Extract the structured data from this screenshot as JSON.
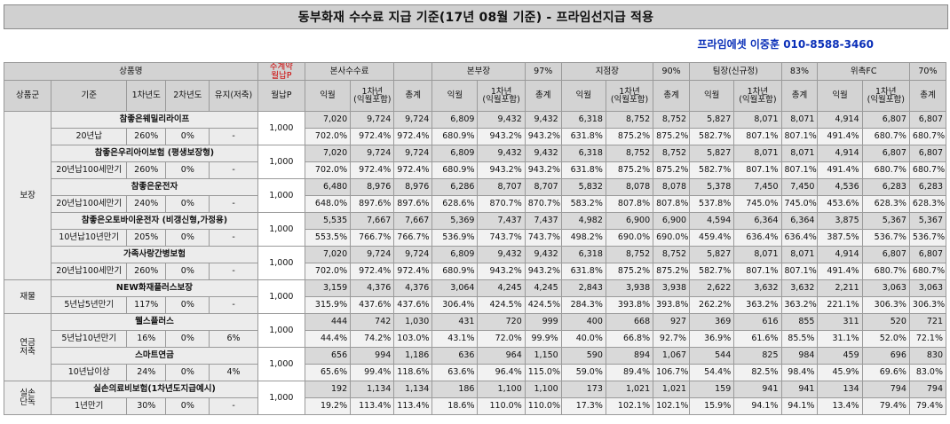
{
  "title": "동부화재 수수료 지급 기준(17년 08월 기준) - 프라임선지급 적용",
  "contact": "프라임에셋 이중훈 010-8588-3460",
  "header": {
    "product": "상품명",
    "monthly_red": "주계약\n월납P",
    "channels": [
      {
        "name": "본사수수료",
        "rate": ""
      },
      {
        "name": "본부장",
        "rate": "97%"
      },
      {
        "name": "지점장",
        "rate": "90%"
      },
      {
        "name": "팀장(신규정)",
        "rate": "83%"
      },
      {
        "name": "위촉FC",
        "rate": "70%"
      }
    ],
    "sub": {
      "group": "상품군",
      "basis": "기준",
      "y1": "1차년도",
      "y2": "2차년도",
      "keep": "유지(저축)",
      "monthly": "월납P",
      "c1": "익월",
      "c2": "1차년\n(익월포함)",
      "c3": "총계"
    }
  },
  "groups": [
    {
      "name": "보장",
      "products": [
        {
          "name": "참좋은웨밀리라이프",
          "basis": "20년납",
          "y1": "260%",
          "y2": "0%",
          "keep": "-",
          "pay": "1,000",
          "amounts": [
            [
              "7,020",
              "9,724",
              "9,724"
            ],
            [
              "6,809",
              "9,432",
              "9,432"
            ],
            [
              "6,318",
              "8,752",
              "8,752"
            ],
            [
              "5,827",
              "8,071",
              "8,071"
            ],
            [
              "4,914",
              "6,807",
              "6,807"
            ]
          ],
          "pcts": [
            [
              "702.0%",
              "972.4%",
              "972.4%"
            ],
            [
              "680.9%",
              "943.2%",
              "943.2%"
            ],
            [
              "631.8%",
              "875.2%",
              "875.2%"
            ],
            [
              "582.7%",
              "807.1%",
              "807.1%"
            ],
            [
              "491.4%",
              "680.7%",
              "680.7%"
            ]
          ]
        },
        {
          "name": "참좋은우리아이보험 (평생보장형)",
          "basis": "20년납100세만기",
          "y1": "260%",
          "y2": "0%",
          "keep": "-",
          "pay": "1,000",
          "amounts": [
            [
              "7,020",
              "9,724",
              "9,724"
            ],
            [
              "6,809",
              "9,432",
              "9,432"
            ],
            [
              "6,318",
              "8,752",
              "8,752"
            ],
            [
              "5,827",
              "8,071",
              "8,071"
            ],
            [
              "4,914",
              "6,807",
              "6,807"
            ]
          ],
          "pcts": [
            [
              "702.0%",
              "972.4%",
              "972.4%"
            ],
            [
              "680.9%",
              "943.2%",
              "943.2%"
            ],
            [
              "631.8%",
              "875.2%",
              "875.2%"
            ],
            [
              "582.7%",
              "807.1%",
              "807.1%"
            ],
            [
              "491.4%",
              "680.7%",
              "680.7%"
            ]
          ]
        },
        {
          "name": "참좋은운전자",
          "basis": "20년납100세만기",
          "y1": "240%",
          "y2": "0%",
          "keep": "-",
          "pay": "1,000",
          "amounts": [
            [
              "6,480",
              "8,976",
              "8,976"
            ],
            [
              "6,286",
              "8,707",
              "8,707"
            ],
            [
              "5,832",
              "8,078",
              "8,078"
            ],
            [
              "5,378",
              "7,450",
              "7,450"
            ],
            [
              "4,536",
              "6,283",
              "6,283"
            ]
          ],
          "pcts": [
            [
              "648.0%",
              "897.6%",
              "897.6%"
            ],
            [
              "628.6%",
              "870.7%",
              "870.7%"
            ],
            [
              "583.2%",
              "807.8%",
              "807.8%"
            ],
            [
              "537.8%",
              "745.0%",
              "745.0%"
            ],
            [
              "453.6%",
              "628.3%",
              "628.3%"
            ]
          ]
        },
        {
          "name": "참좋은오토바이운전자 (비갱신형,가정용)",
          "basis": "10년납10년만기",
          "y1": "205%",
          "y2": "0%",
          "keep": "-",
          "pay": "1,000",
          "amounts": [
            [
              "5,535",
              "7,667",
              "7,667"
            ],
            [
              "5,369",
              "7,437",
              "7,437"
            ],
            [
              "4,982",
              "6,900",
              "6,900"
            ],
            [
              "4,594",
              "6,364",
              "6,364"
            ],
            [
              "3,875",
              "5,367",
              "5,367"
            ]
          ],
          "pcts": [
            [
              "553.5%",
              "766.7%",
              "766.7%"
            ],
            [
              "536.9%",
              "743.7%",
              "743.7%"
            ],
            [
              "498.2%",
              "690.0%",
              "690.0%"
            ],
            [
              "459.4%",
              "636.4%",
              "636.4%"
            ],
            [
              "387.5%",
              "536.7%",
              "536.7%"
            ]
          ]
        },
        {
          "name": "가족사랑간병보험",
          "basis": "20년납100세만기",
          "y1": "260%",
          "y2": "0%",
          "keep": "-",
          "pay": "1,000",
          "amounts": [
            [
              "7,020",
              "9,724",
              "9,724"
            ],
            [
              "6,809",
              "9,432",
              "9,432"
            ],
            [
              "6,318",
              "8,752",
              "8,752"
            ],
            [
              "5,827",
              "8,071",
              "8,071"
            ],
            [
              "4,914",
              "6,807",
              "6,807"
            ]
          ],
          "pcts": [
            [
              "702.0%",
              "972.4%",
              "972.4%"
            ],
            [
              "680.9%",
              "943.2%",
              "943.2%"
            ],
            [
              "631.8%",
              "875.2%",
              "875.2%"
            ],
            [
              "582.7%",
              "807.1%",
              "807.1%"
            ],
            [
              "491.4%",
              "680.7%",
              "680.7%"
            ]
          ]
        }
      ]
    },
    {
      "name": "재물",
      "products": [
        {
          "name": "NEW화재플러스보장",
          "basis": "5년납5년만기",
          "y1": "117%",
          "y2": "0%",
          "keep": "-",
          "pay": "1,000",
          "amounts": [
            [
              "3,159",
              "4,376",
              "4,376"
            ],
            [
              "3,064",
              "4,245",
              "4,245"
            ],
            [
              "2,843",
              "3,938",
              "3,938"
            ],
            [
              "2,622",
              "3,632",
              "3,632"
            ],
            [
              "2,211",
              "3,063",
              "3,063"
            ]
          ],
          "pcts": [
            [
              "315.9%",
              "437.6%",
              "437.6%"
            ],
            [
              "306.4%",
              "424.5%",
              "424.5%"
            ],
            [
              "284.3%",
              "393.8%",
              "393.8%"
            ],
            [
              "262.2%",
              "363.2%",
              "363.2%"
            ],
            [
              "221.1%",
              "306.3%",
              "306.3%"
            ]
          ]
        }
      ]
    },
    {
      "name": "연금\n저축",
      "products": [
        {
          "name": "웰스플러스",
          "basis": "5년납10년만기",
          "y1": "16%",
          "y2": "0%",
          "keep": "6%",
          "pay": "1,000",
          "amounts": [
            [
              "444",
              "742",
              "1,030"
            ],
            [
              "431",
              "720",
              "999"
            ],
            [
              "400",
              "668",
              "927"
            ],
            [
              "369",
              "616",
              "855"
            ],
            [
              "311",
              "520",
              "721"
            ]
          ],
          "pcts": [
            [
              "44.4%",
              "74.2%",
              "103.0%"
            ],
            [
              "43.1%",
              "72.0%",
              "99.9%"
            ],
            [
              "40.0%",
              "66.8%",
              "92.7%"
            ],
            [
              "36.9%",
              "61.6%",
              "85.5%"
            ],
            [
              "31.1%",
              "52.0%",
              "72.1%"
            ]
          ]
        },
        {
          "name": "스마트연금",
          "basis": "10년납이상",
          "y1": "24%",
          "y2": "0%",
          "keep": "4%",
          "pay": "1,000",
          "amounts": [
            [
              "656",
              "994",
              "1,186"
            ],
            [
              "636",
              "964",
              "1,150"
            ],
            [
              "590",
              "894",
              "1,067"
            ],
            [
              "544",
              "825",
              "984"
            ],
            [
              "459",
              "696",
              "830"
            ]
          ],
          "pcts": [
            [
              "65.6%",
              "99.4%",
              "118.6%"
            ],
            [
              "63.6%",
              "96.4%",
              "115.0%"
            ],
            [
              "59.0%",
              "89.4%",
              "106.7%"
            ],
            [
              "54.4%",
              "82.5%",
              "98.4%"
            ],
            [
              "45.9%",
              "69.6%",
              "83.0%"
            ]
          ]
        }
      ]
    },
    {
      "name": "실손\n단독",
      "products": [
        {
          "name": "실손의료비보험(1차년도지급예시)",
          "basis": "1년만기",
          "y1": "30%",
          "y2": "0%",
          "keep": "-",
          "pay": "1,000",
          "amounts": [
            [
              "192",
              "1,134",
              "1,134"
            ],
            [
              "186",
              "1,100",
              "1,100"
            ],
            [
              "173",
              "1,021",
              "1,021"
            ],
            [
              "159",
              "941",
              "941"
            ],
            [
              "134",
              "794",
              "794"
            ]
          ],
          "pcts": [
            [
              "19.2%",
              "113.4%",
              "113.4%"
            ],
            [
              "18.6%",
              "110.0%",
              "110.0%"
            ],
            [
              "17.3%",
              "102.1%",
              "102.1%"
            ],
            [
              "15.9%",
              "94.1%",
              "94.1%"
            ],
            [
              "13.4%",
              "79.4%",
              "79.4%"
            ]
          ]
        }
      ]
    }
  ]
}
